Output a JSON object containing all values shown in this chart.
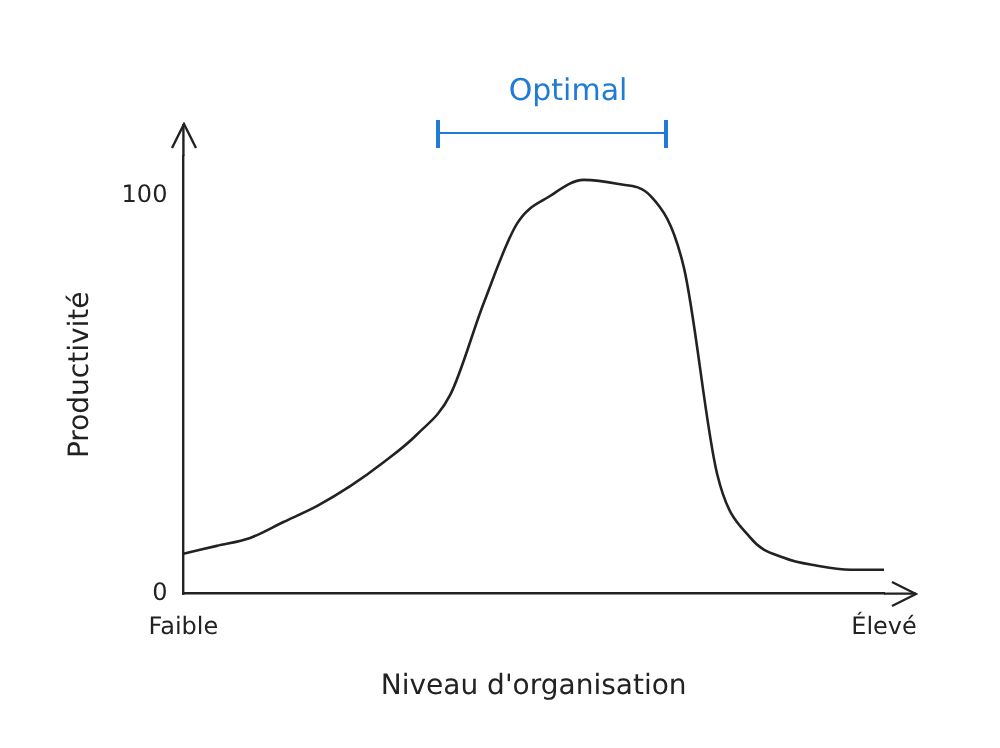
{
  "chart_data": {
    "type": "line",
    "xlabel": "Niveau d'organisation",
    "ylabel": "Productivité",
    "annotations": [
      "Optimal"
    ],
    "categories": [
      "Faible",
      null,
      null,
      null,
      null,
      null,
      null,
      null,
      null,
      null,
      null,
      null,
      null,
      null,
      null,
      null,
      null,
      null,
      null,
      null,
      null,
      "Élevé"
    ],
    "series": [
      {
        "color": "#222222",
        "values": [
          10,
          12,
          14,
          18,
          22,
          27,
          33,
          40,
          50,
          73,
          93,
          100,
          104,
          103,
          100,
          82,
          30,
          14,
          9,
          7,
          6,
          6
        ]
      }
    ],
    "ylim": [
      0,
      110
    ],
    "yticks": [
      0,
      100
    ],
    "grid": false,
    "legend": false,
    "marker": "none",
    "line_style": "solid"
  }
}
